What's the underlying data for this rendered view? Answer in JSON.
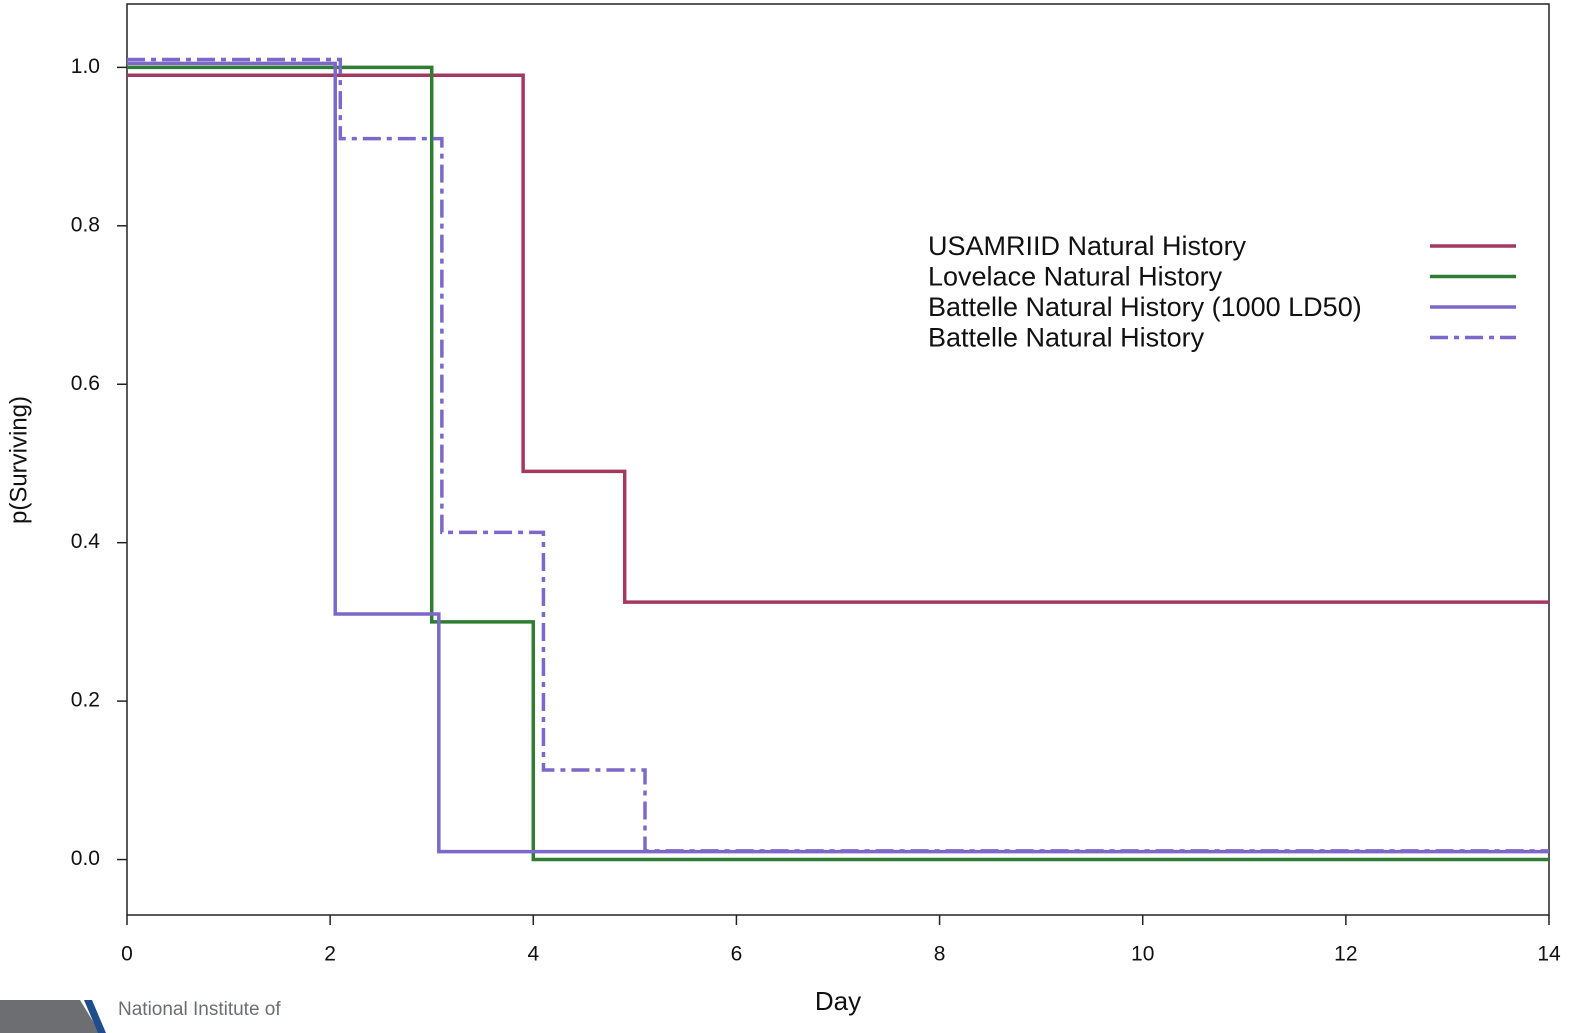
{
  "chart_data": {
    "type": "step",
    "xlabel": "Day",
    "ylabel": "p(Surviving)",
    "xlim": [
      0,
      14
    ],
    "ylim": [
      -0.07,
      1.08
    ],
    "xticks": [
      0,
      2,
      4,
      6,
      8,
      10,
      12,
      14
    ],
    "yticks": [
      {
        "value": 0,
        "label": "0.0"
      },
      0.2,
      0.4,
      0.6,
      0.8,
      {
        "value": 1,
        "label": "1.0"
      }
    ],
    "grid": false,
    "legend_position": "right",
    "series": [
      {
        "name": "USAMRIID Natural History",
        "color": "#a3395e",
        "linestyle": "solid",
        "x": [
          0,
          3.9,
          4.9,
          14
        ],
        "values": [
          0.99,
          0.49,
          0.325,
          0.325
        ]
      },
      {
        "name": "Lovelace Natural History",
        "color": "#2e7d32",
        "linestyle": "solid",
        "x": [
          0,
          3,
          4,
          14
        ],
        "values": [
          1,
          0.3,
          0,
          0
        ]
      },
      {
        "name": "Battelle Natural History (1000 LD50)",
        "color": "#7b68c8",
        "linestyle": "solid",
        "x": [
          0,
          2.05,
          3.07,
          14
        ],
        "values": [
          1.005,
          0.31,
          0.01,
          0.01
        ]
      },
      {
        "name": "Battelle Natural History",
        "color": "#7b68c8",
        "linestyle": "dashdot",
        "x": [
          0,
          2.1,
          3.1,
          4.1,
          5.1,
          14
        ],
        "values": [
          1.01,
          0.91,
          0.413,
          0.113,
          0.011,
          0.011
        ]
      }
    ]
  },
  "footer": {
    "text": "National Institute of"
  }
}
